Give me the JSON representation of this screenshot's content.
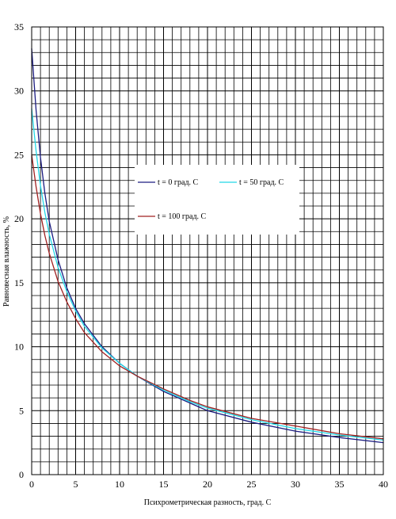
{
  "chart_data": {
    "type": "line",
    "title": "",
    "xlabel": "Психрометрическая разность, град. С",
    "ylabel": "Равновесная влажность, %",
    "xlim": [
      0,
      40
    ],
    "ylim": [
      0,
      35
    ],
    "x_ticks": [
      0,
      5,
      10,
      15,
      20,
      25,
      30,
      35,
      40
    ],
    "y_ticks": [
      0,
      5,
      10,
      15,
      20,
      25,
      30,
      35
    ],
    "grid": true,
    "legend_position": "center-right",
    "series": [
      {
        "name": "t = 0 град. С",
        "color": "#1c1c80",
        "x": [
          0,
          0.5,
          1,
          1.5,
          2,
          3,
          4,
          5,
          6,
          8,
          10,
          12,
          15,
          18,
          20,
          25,
          30,
          35,
          40
        ],
        "y": [
          33.3,
          28.5,
          24.8,
          22.0,
          19.8,
          16.8,
          14.6,
          13.0,
          11.8,
          10.0,
          8.7,
          7.7,
          6.5,
          5.6,
          5.0,
          4.1,
          3.4,
          2.9,
          2.5
        ]
      },
      {
        "name": "t = 50 град. С",
        "color": "#22d8e8",
        "x": [
          0,
          0.5,
          1,
          1.5,
          2,
          3,
          4,
          5,
          6,
          8,
          10,
          12,
          15,
          18,
          20,
          25,
          30,
          35,
          40
        ],
        "y": [
          28.6,
          25.3,
          22.6,
          20.5,
          18.8,
          16.2,
          14.3,
          12.8,
          11.6,
          9.9,
          8.7,
          7.7,
          6.6,
          5.7,
          5.2,
          4.3,
          3.6,
          3.1,
          2.7
        ]
      },
      {
        "name": "t = 100 град. С",
        "color": "#a02020",
        "x": [
          0,
          0.5,
          1,
          1.5,
          2,
          3,
          4,
          5,
          6,
          8,
          10,
          12,
          15,
          18,
          20,
          25,
          30,
          35,
          40
        ],
        "y": [
          25.0,
          22.5,
          20.4,
          18.7,
          17.3,
          15.1,
          13.5,
          12.2,
          11.1,
          9.6,
          8.5,
          7.7,
          6.7,
          5.8,
          5.3,
          4.4,
          3.8,
          3.2,
          2.8
        ]
      }
    ]
  }
}
